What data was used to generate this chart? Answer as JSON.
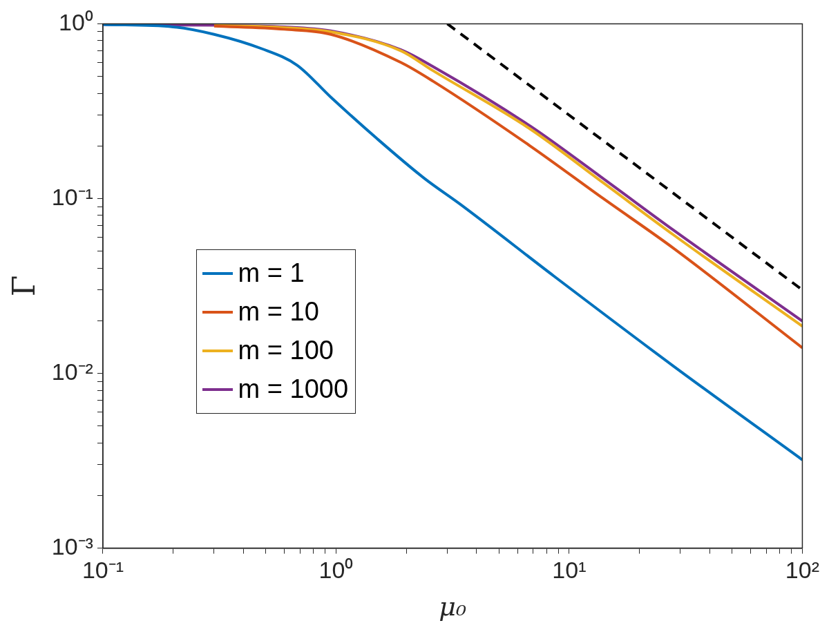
{
  "chart_data": {
    "type": "line",
    "xlabel": "μ₀",
    "ylabel": "Γ",
    "log": "xy",
    "grid": false,
    "legend": "left",
    "marker": "none",
    "line_style": "solid",
    "xlim": [
      0.1,
      100
    ],
    "ylim": [
      0.001,
      1
    ],
    "xticks": [
      {
        "value": 0.1,
        "label": "10⁻¹"
      },
      {
        "value": 0.2,
        "label": null
      },
      {
        "value": 0.3,
        "label": null
      },
      {
        "value": 0.4,
        "label": null
      },
      {
        "value": 0.5,
        "label": null
      },
      {
        "value": 0.6,
        "label": null
      },
      {
        "value": 0.7,
        "label": null
      },
      {
        "value": 0.8,
        "label": null
      },
      {
        "value": 0.9,
        "label": null
      },
      {
        "value": 1,
        "label": "10⁰"
      },
      {
        "value": 2,
        "label": null
      },
      {
        "value": 3,
        "label": null
      },
      {
        "value": 4,
        "label": null
      },
      {
        "value": 5,
        "label": null
      },
      {
        "value": 6,
        "label": null
      },
      {
        "value": 7,
        "label": null
      },
      {
        "value": 8,
        "label": null
      },
      {
        "value": 9,
        "label": null
      },
      {
        "value": 10,
        "label": "10¹"
      },
      {
        "value": 20,
        "label": null
      },
      {
        "value": 30,
        "label": null
      },
      {
        "value": 40,
        "label": null
      },
      {
        "value": 50,
        "label": null
      },
      {
        "value": 60,
        "label": null
      },
      {
        "value": 70,
        "label": null
      },
      {
        "value": 80,
        "label": null
      },
      {
        "value": 90,
        "label": null
      },
      {
        "value": 100,
        "label": "10²"
      }
    ],
    "yticks": [
      {
        "value": 0.001,
        "label": "10⁻³"
      },
      {
        "value": 0.002,
        "label": null
      },
      {
        "value": 0.003,
        "label": null
      },
      {
        "value": 0.004,
        "label": null
      },
      {
        "value": 0.005,
        "label": null
      },
      {
        "value": 0.006,
        "label": null
      },
      {
        "value": 0.007,
        "label": null
      },
      {
        "value": 0.008,
        "label": null
      },
      {
        "value": 0.009,
        "label": null
      },
      {
        "value": 0.01,
        "label": "10⁻²"
      },
      {
        "value": 0.02,
        "label": null
      },
      {
        "value": 0.03,
        "label": null
      },
      {
        "value": 0.04,
        "label": null
      },
      {
        "value": 0.05,
        "label": null
      },
      {
        "value": 0.06,
        "label": null
      },
      {
        "value": 0.07,
        "label": null
      },
      {
        "value": 0.08,
        "label": null
      },
      {
        "value": 0.09,
        "label": null
      },
      {
        "value": 0.1,
        "label": "10⁻¹"
      },
      {
        "value": 0.2,
        "label": null
      },
      {
        "value": 0.3,
        "label": null
      },
      {
        "value": 0.4,
        "label": null
      },
      {
        "value": 0.5,
        "label": null
      },
      {
        "value": 0.6,
        "label": null
      },
      {
        "value": 0.7,
        "label": null
      },
      {
        "value": 0.8,
        "label": null
      },
      {
        "value": 0.9,
        "label": null
      },
      {
        "value": 1,
        "label": "10⁰"
      }
    ],
    "series": [
      {
        "name": "m = 1",
        "color": "#0072bd",
        "x": [
          0.1,
          0.2,
          0.3,
          0.48,
          0.68,
          0.95,
          1.5,
          2.4,
          3.4,
          8.6,
          28,
          100
        ],
        "values": [
          0.99,
          0.96,
          0.87,
          0.72,
          0.58,
          0.38,
          0.22,
          0.13,
          0.093,
          0.036,
          0.011,
          0.0032
        ]
      },
      {
        "name": "m = 10",
        "color": "#d95319",
        "x": [
          0.3,
          0.6,
          0.95,
          1.9,
          2.6,
          6.8,
          14,
          28,
          100
        ],
        "values": [
          0.97,
          0.93,
          0.87,
          0.6,
          0.47,
          0.2,
          0.1,
          0.052,
          0.014
        ]
      },
      {
        "name": "m = 100",
        "color": "#edb120",
        "x": [
          0.3,
          0.6,
          0.95,
          1.9,
          2.6,
          6.8,
          14,
          28,
          100
        ],
        "values": [
          0.98,
          0.95,
          0.9,
          0.7,
          0.54,
          0.25,
          0.123,
          0.062,
          0.0186
        ]
      },
      {
        "name": "m = 1000",
        "color": "#7e2f8e",
        "x": [
          0.1,
          0.3,
          0.6,
          0.95,
          1.9,
          2.6,
          6.8,
          14,
          28,
          100
        ],
        "values": [
          0.99,
          0.98,
          0.96,
          0.91,
          0.71,
          0.57,
          0.26,
          0.13,
          0.066,
          0.0199
        ]
      },
      {
        "color": "#000000",
        "line_style": "dashed",
        "x": [
          3,
          100
        ],
        "values": [
          1,
          0.03
        ]
      }
    ]
  }
}
